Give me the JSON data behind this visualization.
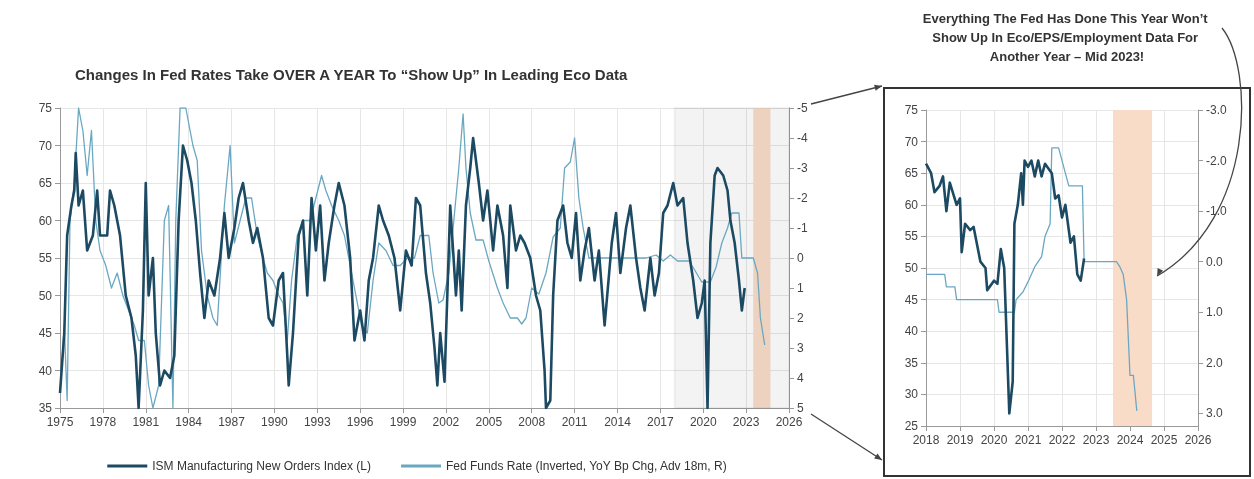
{
  "chart_data": [
    {
      "type": "line",
      "title": "Changes In Fed Rates Take OVER A YEAR To “Show Up” In Leading Eco Data",
      "legend": "bottom",
      "grid": true,
      "marker": "none",
      "xlim": [
        1975,
        2026
      ],
      "xticks": [
        1975,
        1978,
        1981,
        1984,
        1987,
        1990,
        1993,
        1996,
        1999,
        2002,
        2005,
        2008,
        2011,
        2014,
        2017,
        2020,
        2023,
        2026
      ],
      "ylim": [
        35,
        75
      ],
      "yticks": [
        35,
        40,
        45,
        50,
        55,
        60,
        65,
        70,
        75
      ],
      "y2lim": [
        5,
        -5
      ],
      "y2ticks": [
        -5,
        -4,
        -3,
        -2,
        -1,
        0,
        1,
        2,
        3,
        4,
        5
      ],
      "bands": [
        {
          "axis": "x",
          "from": 2023.5,
          "to": 2024.7,
          "color": "#f9dcc8"
        },
        {
          "axis": "x",
          "from": 2018,
          "to": 2026,
          "color": "#333333"
        }
      ],
      "series": [
        {
          "name": "ISM Manufacturing New Orders Index (L)",
          "color": "#1d4a63",
          "x": [
            1975.0,
            1975.3,
            1975.5,
            1975.8,
            1976.0,
            1976.1,
            1976.3,
            1976.6,
            1976.9,
            1977.3,
            1977.6,
            1977.8,
            1978.3,
            1978.5,
            1978.8,
            1979.2,
            1979.6,
            1980.0,
            1980.3,
            1980.5,
            1980.8,
            1981.0,
            1981.2,
            1981.5,
            1981.7,
            1982.0,
            1982.3,
            1982.7,
            1983.0,
            1983.3,
            1983.6,
            1983.9,
            1984.2,
            1984.5,
            1984.8,
            1985.1,
            1985.4,
            1985.8,
            1986.2,
            1986.5,
            1986.8,
            1987.2,
            1987.5,
            1987.8,
            1988.2,
            1988.5,
            1988.8,
            1989.2,
            1989.6,
            1989.9,
            1990.3,
            1990.6,
            1990.9,
            1991.0,
            1991.3,
            1991.7,
            1992.0,
            1992.3,
            1992.6,
            1992.9,
            1993.2,
            1993.5,
            1993.8,
            1994.2,
            1994.5,
            1994.9,
            1995.3,
            1995.6,
            1996.0,
            1996.3,
            1996.6,
            1996.9,
            1997.3,
            1997.6,
            1998.0,
            1998.4,
            1998.8,
            1999.2,
            1999.6,
            1999.9,
            2000.2,
            2000.6,
            2000.9,
            2001.2,
            2001.4,
            2001.6,
            2001.9,
            2002.3,
            2002.7,
            2002.9,
            2003.1,
            2003.4,
            2003.7,
            2003.9,
            2004.3,
            2004.6,
            2004.9,
            2005.3,
            2005.6,
            2006.0,
            2006.3,
            2006.5,
            2006.9,
            2007.2,
            2007.5,
            2007.9,
            2008.3,
            2008.6,
            2008.9,
            2009.0,
            2009.3,
            2009.5,
            2009.8,
            2010.2,
            2010.5,
            2010.8,
            2011.1,
            2011.4,
            2011.7,
            2012.0,
            2012.4,
            2012.7,
            2013.1,
            2013.6,
            2013.9,
            2014.2,
            2014.6,
            2014.9,
            2015.3,
            2015.6,
            2015.9,
            2016.3,
            2016.6,
            2016.9,
            2017.2,
            2017.5,
            2017.9,
            2018.2,
            2018.6,
            2018.9,
            2019.3,
            2019.6,
            2019.9,
            2020.1,
            2020.3,
            2020.5,
            2020.8,
            2021.0,
            2021.4,
            2021.7,
            2021.9,
            2022.2,
            2022.5,
            2022.7,
            2022.9
          ],
          "values": [
            37,
            45,
            58,
            62,
            64,
            69,
            62,
            64,
            56,
            58,
            64,
            58,
            58,
            64,
            62,
            58,
            50,
            47,
            42,
            35,
            48,
            65,
            50,
            55,
            45,
            38,
            40,
            39,
            42,
            60,
            70,
            68,
            65,
            60,
            53,
            47,
            52,
            50,
            55,
            61,
            55,
            59,
            63,
            65,
            60,
            57,
            59,
            55,
            47,
            46,
            52,
            53,
            42,
            38,
            45,
            58,
            60,
            50,
            63,
            56,
            62,
            52,
            57,
            62,
            65,
            62,
            55,
            44,
            48,
            44,
            52,
            55,
            62,
            60,
            58,
            55,
            48,
            56,
            54,
            63,
            62,
            53,
            49,
            43,
            38,
            45,
            38.5,
            62,
            50,
            56,
            48,
            62,
            67,
            71,
            65,
            60,
            64,
            56,
            62,
            58,
            51,
            62,
            56,
            58,
            57,
            55,
            50,
            48,
            40,
            35,
            36,
            50,
            60,
            62,
            57,
            55,
            61,
            52,
            56,
            59,
            52,
            56,
            46,
            57,
            61,
            53,
            59,
            62,
            55,
            51,
            48,
            55,
            50,
            53,
            61,
            62,
            65,
            62,
            63,
            57,
            52,
            47,
            49,
            52,
            35,
            57,
            66,
            67,
            66,
            64,
            60,
            57,
            52,
            48,
            51
          ]
        },
        {
          "name": "Fed Funds Rate (Inverted, YoY Bp Chg, Adv 18m, R)",
          "color": "#6aa8c2",
          "axis": "y2",
          "x": [
            1975.0,
            1975.3,
            1975.5,
            1975.7,
            1976.0,
            1976.3,
            1976.6,
            1976.9,
            1977.2,
            1977.5,
            1977.8,
            1978.2,
            1978.6,
            1979.0,
            1979.4,
            1979.8,
            1980.2,
            1980.5,
            1980.9,
            1981.2,
            1981.5,
            1981.9,
            1982.3,
            1982.6,
            1982.9,
            1983.1,
            1983.4,
            1983.8,
            1984.3,
            1984.6,
            1984.9,
            1985.3,
            1985.7,
            1986.0,
            1986.5,
            1986.9,
            1987.2,
            1987.6,
            1988.0,
            1988.4,
            1988.8,
            1989.2,
            1989.5,
            1989.9,
            1990.3,
            1990.6,
            1990.9,
            1991.2,
            1991.6,
            1992.0,
            1992.5,
            1992.9,
            1993.3,
            1993.6,
            1994.0,
            1994.5,
            1994.9,
            1995.3,
            1995.7,
            1996.1,
            1996.5,
            1996.9,
            1997.3,
            1997.8,
            1998.3,
            1998.8,
            1999.3,
            1999.8,
            2000.2,
            2000.8,
            2001.1,
            2001.5,
            2001.8,
            2002.2,
            2002.6,
            2002.9,
            2003.2,
            2003.4,
            2003.7,
            2004.1,
            2004.6,
            2005.0,
            2005.6,
            2006.0,
            2006.5,
            2007.0,
            2007.3,
            2007.6,
            2008.0,
            2008.5,
            2009.0,
            2009.5,
            2010.0,
            2010.3,
            2010.7,
            2011.0,
            2011.3,
            2011.6,
            2012.0,
            2013.0,
            2014.0,
            2015.0,
            2016.0,
            2016.7,
            2017.2,
            2017.7,
            2018.2,
            2019.0,
            2019.4,
            2019.9,
            2020.5,
            2020.9,
            2021.3,
            2021.7,
            2022.0,
            2022.5,
            2022.7,
            2023.5,
            2023.8,
            2024.0,
            2024.3
          ],
          "values": [
            4.5,
            2.25,
            4.75,
            -1.25,
            -2.5,
            -5,
            -4.25,
            -2.75,
            -4.25,
            -1.25,
            -0.25,
            0.25,
            1,
            0.5,
            1.25,
            1.75,
            2.25,
            2.75,
            2.75,
            4.25,
            5,
            4.25,
            -1.25,
            -1.75,
            5,
            -1.25,
            -5,
            -5,
            -3.75,
            -3.25,
            -0.25,
            1.25,
            2,
            2.25,
            -1.75,
            -3.75,
            -0.5,
            -1.25,
            -2,
            -2,
            -0.75,
            0,
            0.5,
            0.75,
            1.25,
            1.5,
            2.75,
            0.75,
            -0.75,
            -1.25,
            -1.25,
            -2,
            -2.75,
            -2.25,
            -1.75,
            -1.25,
            -0.75,
            0.25,
            1.25,
            2.25,
            2.5,
            0.75,
            -0.5,
            -0.25,
            0.25,
            0.25,
            0,
            0,
            -0.75,
            -0.75,
            0.5,
            1.5,
            1.4,
            0.5,
            -1.5,
            -3,
            -4.8,
            -3,
            -1.5,
            -0.6,
            -0.6,
            0.1,
            1,
            1.5,
            2,
            2,
            2.2,
            2,
            1,
            1.2,
            0.5,
            -0.7,
            -1,
            -3,
            -3.2,
            -4,
            -2,
            -1,
            0,
            0,
            0,
            0,
            0,
            -0.1,
            0.1,
            -0.1,
            0.1,
            0.1,
            0.4,
            0.8,
            0.8,
            0.3,
            -0.5,
            -1,
            -1.5,
            -1.5,
            0,
            0,
            0.5,
            2,
            2.9
          ]
        }
      ]
    },
    {
      "type": "line",
      "title": "Everything The Fed Has Done This Year Won’t Show Up In Eco/EPS/Employment Data For Another Year – Mid 2023!",
      "grid": true,
      "marker": "none",
      "xlim": [
        2018,
        2026
      ],
      "xticks": [
        2018,
        2019,
        2020,
        2021,
        2022,
        2023,
        2024,
        2025,
        2026
      ],
      "ylim": [
        25,
        75
      ],
      "yticks": [
        25,
        30,
        35,
        40,
        45,
        50,
        55,
        60,
        65,
        70,
        75
      ],
      "y2lim": [
        3.25,
        -3
      ],
      "y2ticks": [
        {
          "value": -3,
          "label": "-3.0"
        },
        {
          "value": -2,
          "label": "-2.0"
        },
        {
          "value": -1,
          "label": "-1.0"
        },
        {
          "value": 0,
          "label": "0.0"
        },
        {
          "value": 1,
          "label": "1.0"
        },
        {
          "value": 2,
          "label": "2.0"
        },
        {
          "value": 3,
          "label": "3.0"
        }
      ],
      "bands": [
        {
          "axis": "x",
          "from": 2023.5,
          "to": 2024.65,
          "color": "#f9dcc8"
        }
      ],
      "series": [
        {
          "color": "#1d4a63",
          "x": [
            2018.0,
            2018.15,
            2018.25,
            2018.4,
            2018.5,
            2018.6,
            2018.7,
            2018.9,
            2019.0,
            2019.05,
            2019.15,
            2019.3,
            2019.4,
            2019.6,
            2019.75,
            2019.8,
            2020.0,
            2020.1,
            2020.2,
            2020.3,
            2020.45,
            2020.55,
            2020.6,
            2020.7,
            2020.8,
            2020.85,
            2020.9,
            2021.0,
            2021.1,
            2021.2,
            2021.3,
            2021.4,
            2021.5,
            2021.7,
            2021.8,
            2021.9,
            2022.0,
            2022.1,
            2022.25,
            2022.35,
            2022.45,
            2022.55,
            2022.65
          ],
          "values": [
            66.5,
            65,
            62,
            63,
            64.5,
            59,
            63.5,
            60,
            61,
            52.5,
            57,
            56,
            56.5,
            51,
            50,
            46.5,
            48,
            47.5,
            53,
            50,
            27,
            32,
            57,
            60,
            65,
            60,
            67,
            66,
            67,
            64.5,
            67,
            64.5,
            66.5,
            65,
            61,
            61.5,
            58,
            60,
            54,
            55,
            49,
            48,
            51.5
          ]
        },
        {
          "color": "#6aa8c2",
          "axis": "y2",
          "x": [
            2018.0,
            2018.55,
            2018.6,
            2018.85,
            2018.9,
            2020.1,
            2020.15,
            2020.6,
            2020.65,
            2020.85,
            2021.0,
            2021.2,
            2021.4,
            2021.5,
            2021.65,
            2021.7,
            2021.9,
            2022.0,
            2022.2,
            2022.6,
            2022.65,
            2023.6,
            2023.7,
            2023.8,
            2023.9,
            2024.0,
            2024.1,
            2024.2
          ],
          "values": [
            0.25,
            0.25,
            0.5,
            0.5,
            0.75,
            0.75,
            1.0,
            1.0,
            0.75,
            0.6,
            0.4,
            0.1,
            -0.1,
            -0.5,
            -0.75,
            -2.25,
            -2.25,
            -2.0,
            -1.5,
            -1.5,
            0,
            0,
            0.1,
            0.25,
            0.75,
            2.25,
            2.25,
            2.95
          ]
        }
      ]
    }
  ]
}
